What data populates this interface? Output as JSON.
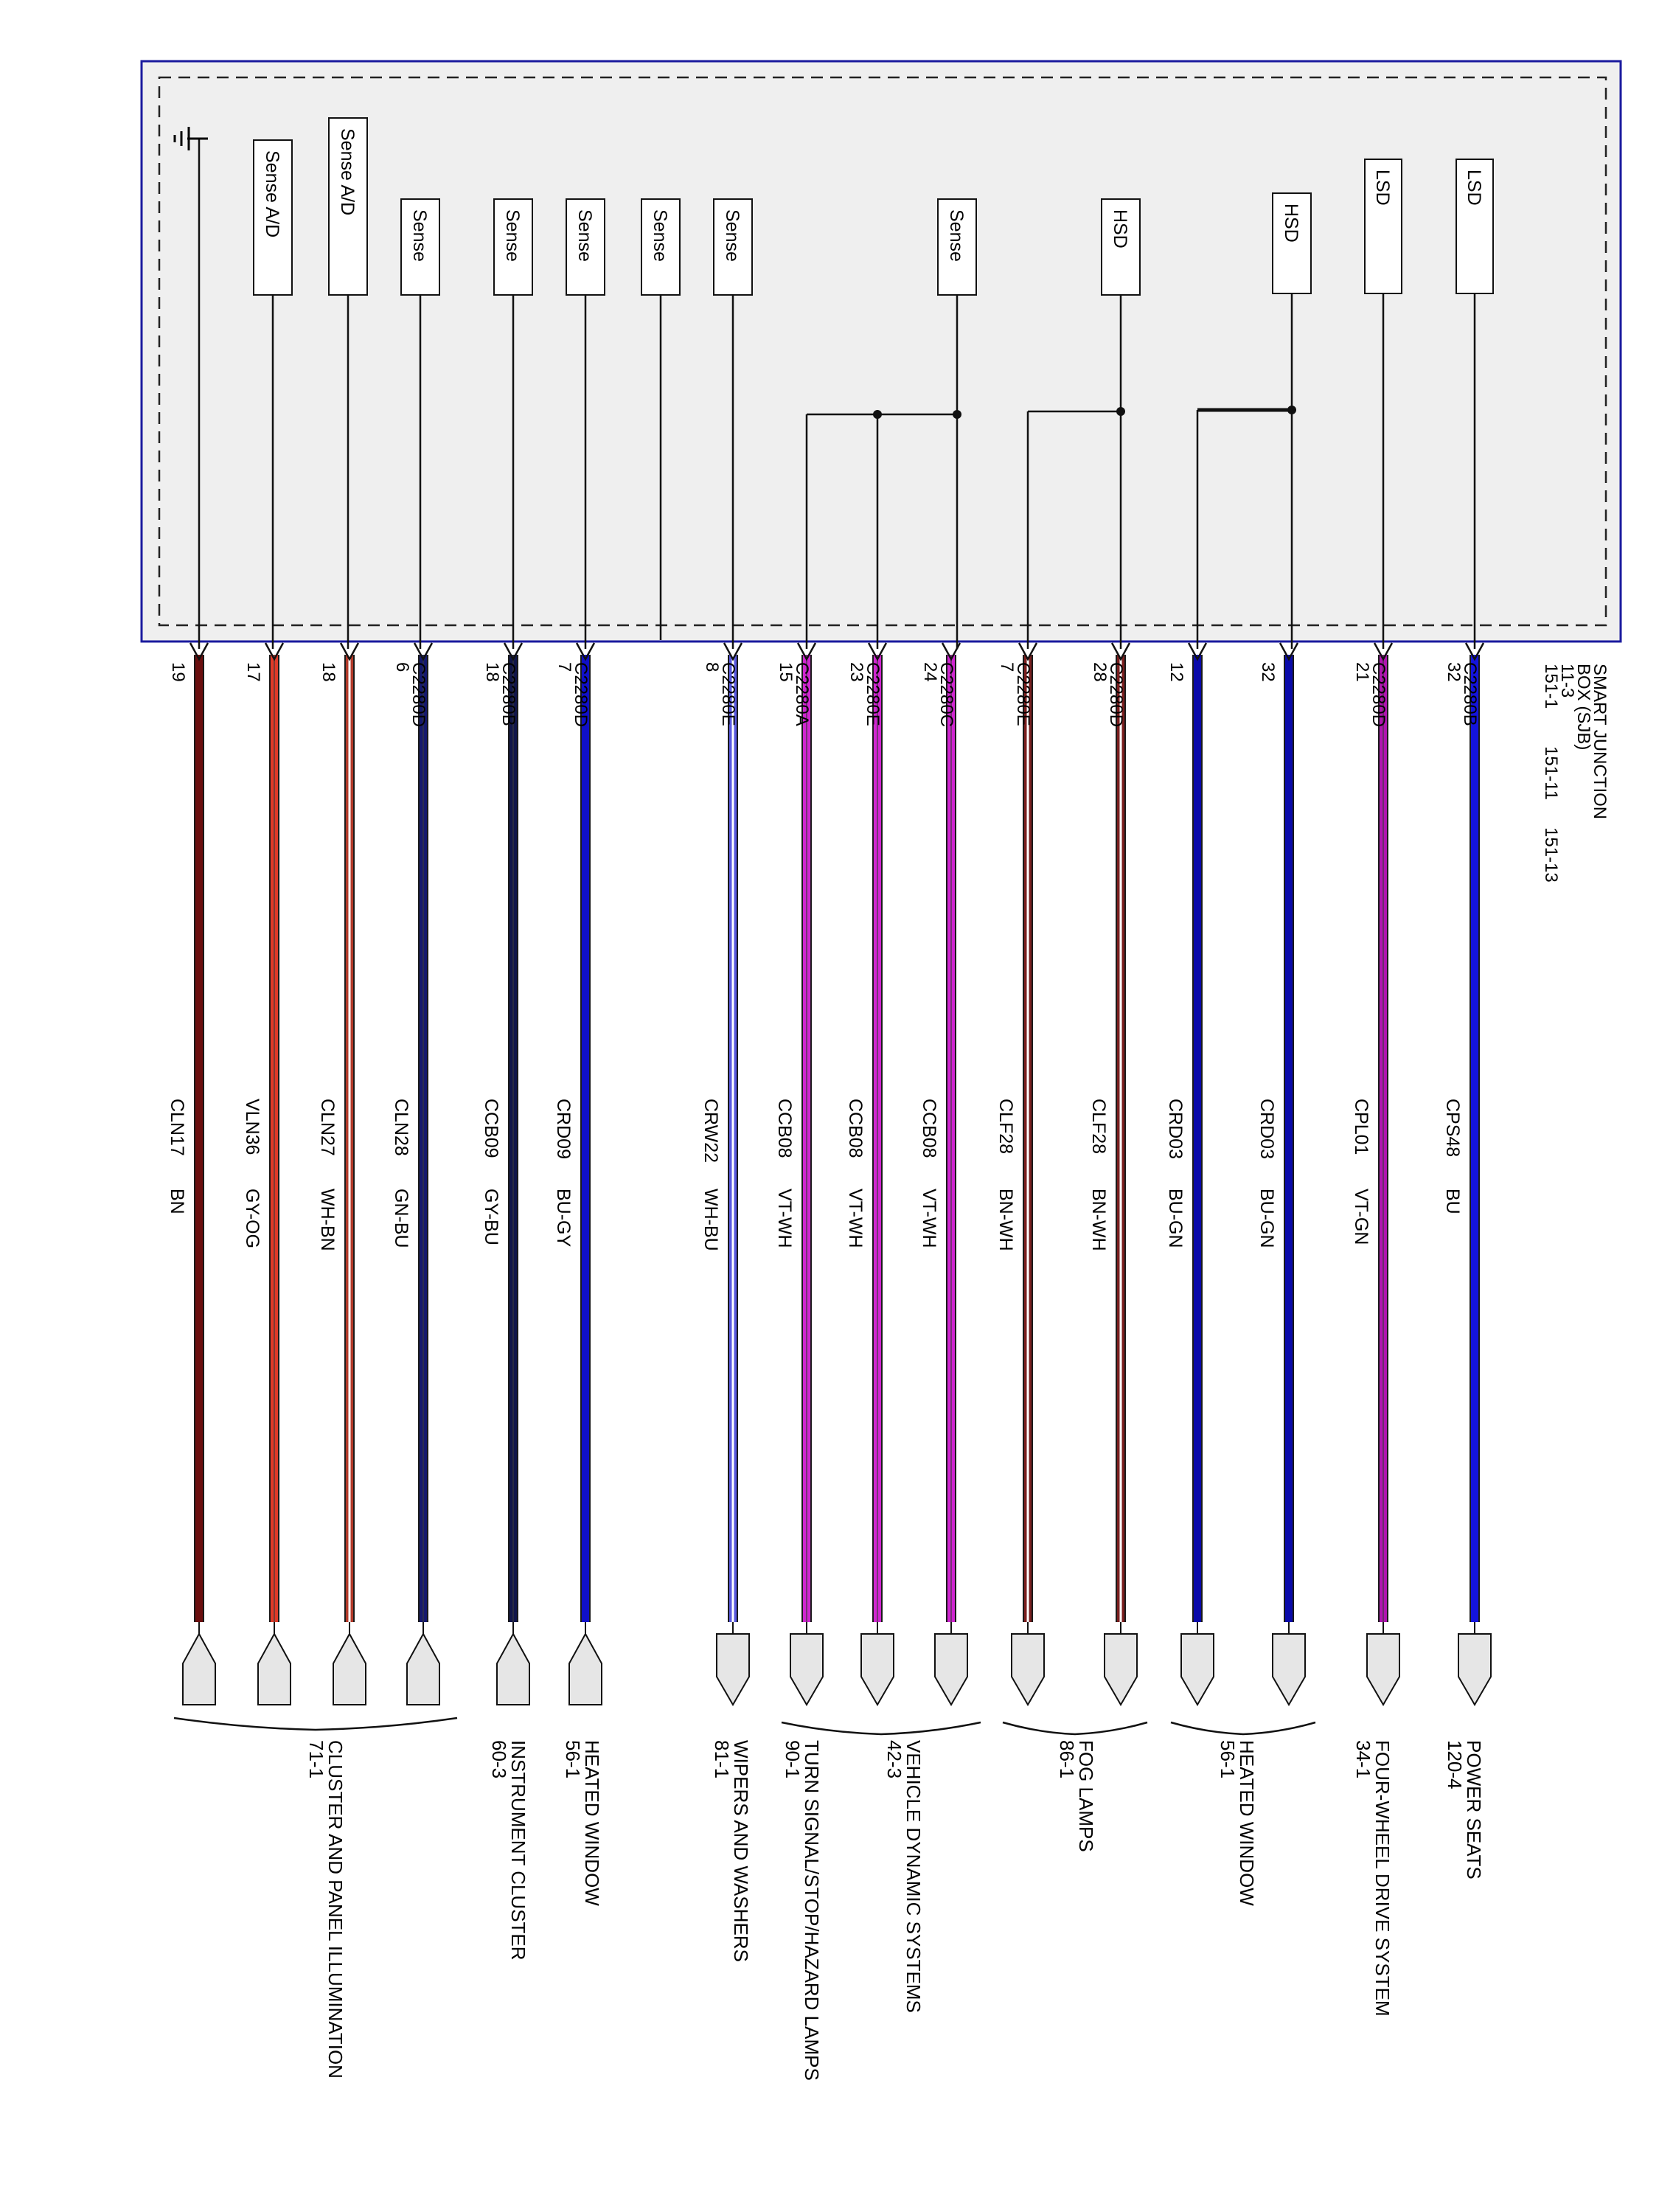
{
  "module": {
    "name_lines": [
      "SMART JUNCTION",
      "BOX (SJB)",
      "11-3"
    ],
    "refs": [
      "151-1",
      "151-11",
      "151-13"
    ]
  },
  "colors": {
    "module_border": "#1a1a9e",
    "module_fill": "#efefef",
    "wire_outline": "#1a1a1a",
    "BN": "#6b0f0f",
    "GY-OG": "#e03a28",
    "WH-BN": "#b23a2a",
    "GN-BU": "#15196e",
    "GY-BU": "#11164a",
    "BU-GY": "#1010c8",
    "WH-BU": "#5a5ae0",
    "VT-WH": "#d026d0",
    "BN-WH": "#7a1f1f",
    "BU-GN": "#0a0aaa",
    "VT-GN": "#b014b0",
    "BU": "#1414dc"
  },
  "ground_icon": "ground-symbol-icon",
  "wires": [
    {
      "id": "w32b",
      "pin": "32",
      "connector": "C2280B",
      "circuit": "CPS48",
      "color": "BU",
      "driver": "LSD"
    },
    {
      "id": "w21d",
      "pin": "21",
      "connector": "C2280D",
      "circuit": "CPL01",
      "color": "VT-GN",
      "driver": "LSD"
    },
    {
      "id": "w32x",
      "pin": "32",
      "connector": "",
      "circuit": "CRD03",
      "color": "BU-GN",
      "driver": "HSD"
    },
    {
      "id": "w12x",
      "pin": "12",
      "connector": "",
      "circuit": "CRD03",
      "color": "BU-GN",
      "driver": ""
    },
    {
      "id": "w28d",
      "pin": "28",
      "connector": "C2280D",
      "circuit": "CLF28",
      "color": "BN-WH",
      "driver": "HSD"
    },
    {
      "id": "w7e",
      "pin": "7",
      "connector": "C2280E",
      "circuit": "CLF28",
      "color": "BN-WH",
      "driver": ""
    },
    {
      "id": "w24c",
      "pin": "24",
      "connector": "C2280C",
      "circuit": "CCB08",
      "color": "VT-WH",
      "driver": "Sense"
    },
    {
      "id": "w23e",
      "pin": "23",
      "connector": "C2280E",
      "circuit": "CCB08",
      "color": "VT-WH",
      "driver": ""
    },
    {
      "id": "w15a",
      "pin": "15",
      "connector": "C2280A",
      "circuit": "CCB08",
      "color": "VT-WH",
      "driver": ""
    },
    {
      "id": "w8e",
      "pin": "8",
      "connector": "C2280E",
      "circuit": "CRW22",
      "color": "WH-BU",
      "driver": "Sense"
    },
    {
      "id": "w7d",
      "pin": "7",
      "connector": "C2280D",
      "circuit": "CRD09",
      "color": "BU-GY",
      "driver": "Sense"
    },
    {
      "id": "w18b",
      "pin": "18",
      "connector": "C2280B",
      "circuit": "CCB09",
      "color": "GY-BU",
      "driver": "Sense"
    },
    {
      "id": "w6d",
      "pin": "6",
      "connector": "C2280D",
      "circuit": "CLN28",
      "color": "GN-BU",
      "driver": "Sense"
    },
    {
      "id": "w18x",
      "pin": "18",
      "connector": "",
      "circuit": "CLN27",
      "color": "WH-BN",
      "driver": "Sense A/D"
    },
    {
      "id": "w17x",
      "pin": "17",
      "connector": "",
      "circuit": "VLN36",
      "color": "GY-OG",
      "driver": "Sense A/D"
    },
    {
      "id": "w19x",
      "pin": "19",
      "connector": "",
      "circuit": "CLN17",
      "color": "BN",
      "driver": ""
    }
  ],
  "unconnected_sense_label": "Sense",
  "destinations": [
    {
      "id": "d-power-seats",
      "name": "POWER SEATS",
      "ref": "120-4"
    },
    {
      "id": "d-4wd",
      "name": "FOUR-WHEEL DRIVE SYSTEM",
      "ref": "34-1"
    },
    {
      "id": "d-heated-window-a",
      "name": "HEATED WINDOW",
      "ref": "56-1"
    },
    {
      "id": "d-fog-lamps",
      "name": "FOG LAMPS",
      "ref": "86-1"
    },
    {
      "id": "d-vds",
      "name": "VEHICLE DYNAMIC SYSTEMS",
      "ref": "42-3"
    },
    {
      "id": "d-turn-signal",
      "name": "TURN SIGNAL/STOP/HAZARD LAMPS",
      "ref": "90-1"
    },
    {
      "id": "d-wipers",
      "name": "WIPERS AND WASHERS",
      "ref": "81-1"
    },
    {
      "id": "d-heated-window-b",
      "name": "HEATED WINDOW",
      "ref": "56-1"
    },
    {
      "id": "d-instrument-cluster",
      "name": "INSTRUMENT CLUSTER",
      "ref": "60-3"
    },
    {
      "id": "d-cluster-illum",
      "name": "CLUSTER AND PANEL ILLUMINATION",
      "ref": "71-1"
    }
  ]
}
